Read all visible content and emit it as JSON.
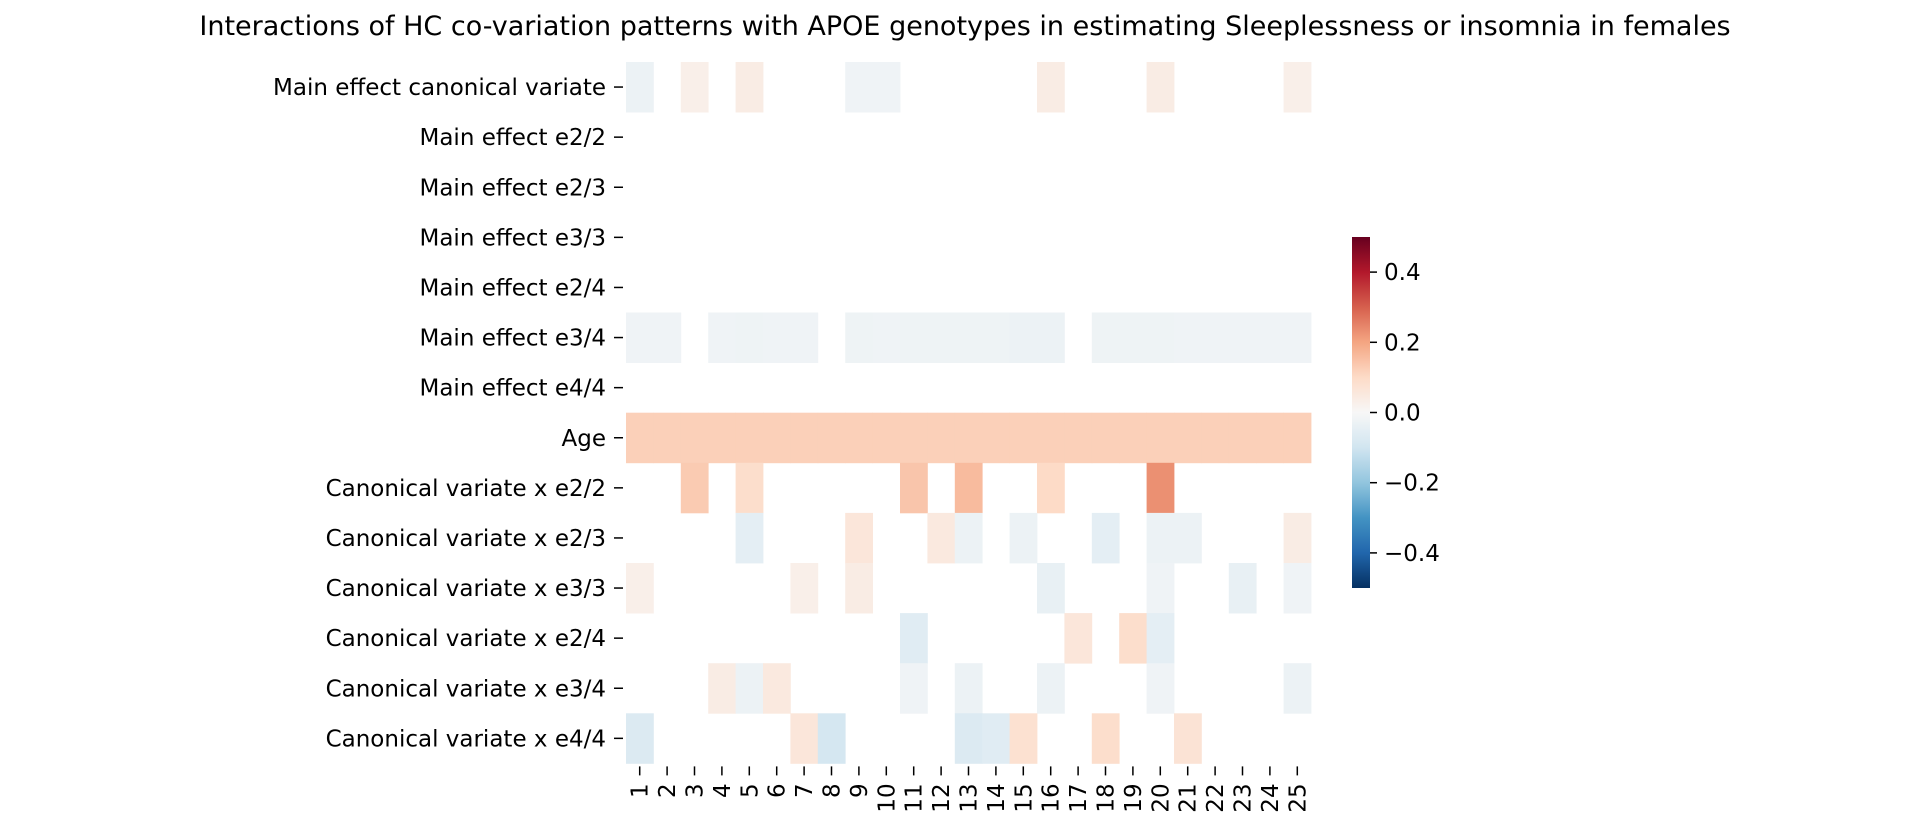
{
  "chart_data": {
    "type": "heatmap",
    "title": "Interactions of HC co-variation patterns with APOE genotypes in estimating Sleeplessness or insomnia in females",
    "xlabel": "",
    "ylabel": "",
    "x_labels": [
      "1",
      "2",
      "3",
      "4",
      "5",
      "6",
      "7",
      "8",
      "9",
      "10",
      "11",
      "12",
      "13",
      "14",
      "15",
      "16",
      "17",
      "18",
      "19",
      "20",
      "21",
      "22",
      "23",
      "24",
      "25"
    ],
    "y_labels": [
      "Main effect canonical variate",
      "Main effect e2/2",
      "Main effect e2/3",
      "Main effect e3/3",
      "Main effect e2/4",
      "Main effect e3/4",
      "Main effect e4/4",
      "Age",
      "Canonical variate x e2/2",
      "Canonical variate x e2/3",
      "Canonical variate x e3/3",
      "Canonical variate x e2/4",
      "Canonical variate x e3/4",
      "Canonical variate x e4/4"
    ],
    "values": [
      [
        -0.03,
        null,
        0.03,
        null,
        0.04,
        null,
        null,
        null,
        -0.02,
        -0.02,
        null,
        null,
        null,
        null,
        null,
        0.04,
        null,
        null,
        null,
        0.04,
        null,
        null,
        null,
        null,
        0.03
      ],
      [
        null,
        null,
        null,
        null,
        null,
        null,
        null,
        null,
        null,
        null,
        null,
        null,
        null,
        null,
        null,
        null,
        null,
        null,
        null,
        null,
        null,
        null,
        null,
        null,
        null
      ],
      [
        null,
        null,
        null,
        null,
        null,
        null,
        null,
        null,
        null,
        null,
        null,
        null,
        null,
        null,
        null,
        null,
        null,
        null,
        null,
        null,
        null,
        null,
        null,
        null,
        null
      ],
      [
        null,
        null,
        null,
        null,
        null,
        null,
        null,
        null,
        null,
        null,
        null,
        null,
        null,
        null,
        null,
        null,
        null,
        null,
        null,
        null,
        null,
        null,
        null,
        null,
        null
      ],
      [
        null,
        null,
        null,
        null,
        null,
        null,
        null,
        null,
        null,
        null,
        null,
        null,
        null,
        null,
        null,
        null,
        null,
        null,
        null,
        null,
        null,
        null,
        null,
        null,
        null
      ],
      [
        -0.02,
        -0.02,
        null,
        -0.02,
        -0.025,
        -0.02,
        -0.02,
        null,
        -0.025,
        -0.02,
        -0.025,
        -0.025,
        -0.025,
        -0.025,
        -0.03,
        -0.03,
        null,
        -0.025,
        -0.025,
        -0.025,
        -0.02,
        -0.02,
        -0.02,
        -0.02,
        -0.02
      ],
      [
        null,
        null,
        null,
        null,
        null,
        null,
        null,
        null,
        null,
        null,
        null,
        null,
        null,
        null,
        null,
        null,
        null,
        null,
        null,
        null,
        null,
        null,
        null,
        null,
        null
      ],
      [
        0.12,
        0.12,
        0.12,
        0.12,
        0.12,
        0.12,
        0.12,
        0.12,
        0.12,
        0.12,
        0.12,
        0.12,
        0.12,
        0.12,
        0.12,
        0.12,
        0.12,
        0.12,
        0.12,
        0.12,
        0.12,
        0.12,
        0.12,
        0.12,
        0.12
      ],
      [
        null,
        null,
        0.13,
        null,
        0.09,
        null,
        null,
        null,
        null,
        null,
        0.14,
        null,
        0.16,
        null,
        null,
        0.1,
        null,
        null,
        null,
        0.23,
        null,
        null,
        null,
        null,
        null
      ],
      [
        null,
        null,
        null,
        null,
        -0.05,
        null,
        null,
        null,
        0.06,
        null,
        null,
        0.05,
        -0.03,
        null,
        -0.03,
        null,
        null,
        -0.05,
        null,
        -0.03,
        -0.03,
        null,
        null,
        null,
        0.04
      ],
      [
        0.03,
        null,
        null,
        null,
        null,
        null,
        0.03,
        null,
        0.04,
        null,
        null,
        null,
        null,
        null,
        null,
        -0.04,
        null,
        null,
        null,
        -0.02,
        null,
        null,
        -0.04,
        null,
        -0.02
      ],
      [
        null,
        null,
        null,
        null,
        null,
        null,
        null,
        null,
        null,
        null,
        -0.06,
        null,
        null,
        null,
        null,
        null,
        0.06,
        null,
        0.09,
        -0.05,
        null,
        null,
        null,
        null,
        null
      ],
      [
        null,
        null,
        null,
        0.04,
        -0.03,
        0.05,
        null,
        null,
        null,
        null,
        -0.02,
        null,
        -0.03,
        null,
        null,
        -0.03,
        null,
        null,
        null,
        -0.02,
        null,
        null,
        null,
        null,
        -0.03
      ],
      [
        -0.07,
        null,
        null,
        null,
        null,
        null,
        0.06,
        -0.09,
        null,
        null,
        null,
        null,
        -0.07,
        -0.06,
        0.08,
        null,
        null,
        0.09,
        null,
        null,
        0.07,
        null,
        null,
        null,
        null
      ]
    ],
    "colormap": "RdBu_r",
    "vmin": -0.5,
    "vmax": 0.5,
    "colorbar_ticks": [
      0.4,
      0.2,
      0.0,
      -0.2,
      -0.4
    ],
    "colorbar_tick_labels": [
      "0.4",
      "0.2",
      "0.0",
      "−0.2",
      "−0.4"
    ],
    "grid": false
  }
}
